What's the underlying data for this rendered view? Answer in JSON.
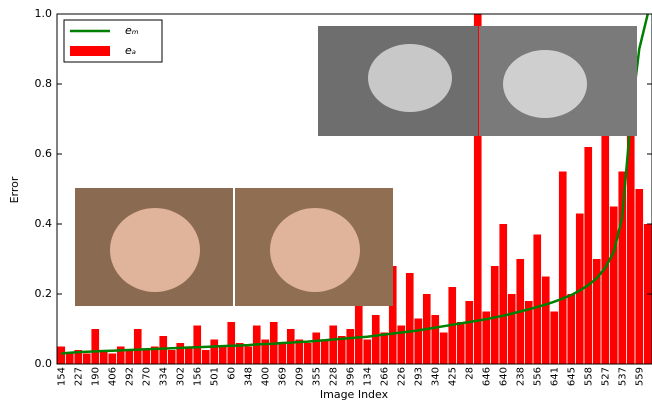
{
  "chart_data": {
    "type": "bar_line",
    "xlabel": "Image Index",
    "ylabel": "Error",
    "categories": [
      "154",
      null,
      "227",
      null,
      "190",
      null,
      "406",
      null,
      "292",
      null,
      "270",
      null,
      "334",
      null,
      "302",
      null,
      "156",
      null,
      "501",
      null,
      "60",
      null,
      "348",
      null,
      "400",
      null,
      "369",
      null,
      "209",
      null,
      "355",
      null,
      "228",
      null,
      "396",
      null,
      "134",
      null,
      "266",
      null,
      "226",
      null,
      "293",
      null,
      "340",
      null,
      "425",
      null,
      "28",
      null,
      "646",
      null,
      "640",
      null,
      "238",
      null,
      "556",
      null,
      "641",
      null,
      "645",
      null,
      "558",
      null,
      "527",
      null,
      "537",
      null,
      "559",
      null
    ],
    "series": [
      {
        "name": "eₐ",
        "kind": "bar",
        "color": "#ff0000",
        "values": [
          0.05,
          0.03,
          0.04,
          0.03,
          0.1,
          0.04,
          0.03,
          0.05,
          0.04,
          0.1,
          0.04,
          0.05,
          0.08,
          0.04,
          0.06,
          0.05,
          0.11,
          0.04,
          0.07,
          0.05,
          0.12,
          0.06,
          0.05,
          0.11,
          0.07,
          0.12,
          0.06,
          0.1,
          0.07,
          0.06,
          0.09,
          0.07,
          0.11,
          0.08,
          0.1,
          0.3,
          0.07,
          0.14,
          0.09,
          0.28,
          0.11,
          0.26,
          0.13,
          0.2,
          0.14,
          0.09,
          0.22,
          0.12,
          0.18,
          1.0,
          0.15,
          0.28,
          0.4,
          0.2,
          0.3,
          0.18,
          0.37,
          0.25,
          0.15,
          0.55,
          0.2,
          0.43,
          0.62,
          0.3,
          0.66,
          0.45,
          0.55,
          0.7,
          0.5,
          0.4
        ]
      },
      {
        "name": "eₘ",
        "kind": "line",
        "color": "#007f00",
        "values": [
          0.03,
          0.032,
          0.034,
          0.035,
          0.036,
          0.037,
          0.038,
          0.039,
          0.04,
          0.041,
          0.042,
          0.043,
          0.044,
          0.045,
          0.046,
          0.047,
          0.048,
          0.049,
          0.05,
          0.051,
          0.052,
          0.053,
          0.054,
          0.056,
          0.057,
          0.058,
          0.06,
          0.061,
          0.063,
          0.064,
          0.066,
          0.068,
          0.07,
          0.072,
          0.074,
          0.076,
          0.078,
          0.081,
          0.084,
          0.087,
          0.09,
          0.093,
          0.096,
          0.1,
          0.104,
          0.108,
          0.112,
          0.116,
          0.12,
          0.124,
          0.128,
          0.133,
          0.138,
          0.144,
          0.15,
          0.156,
          0.163,
          0.17,
          0.178,
          0.187,
          0.197,
          0.21,
          0.225,
          0.245,
          0.275,
          0.32,
          0.42,
          0.7,
          0.9,
          1.0
        ]
      }
    ],
    "ylim": [
      0,
      1
    ],
    "yticks": [
      {
        "value": 0,
        "label": "0.0"
      },
      0.2,
      0.4,
      0.6,
      0.8,
      {
        "value": 1,
        "label": "1.0"
      }
    ],
    "legend": "upper left"
  }
}
